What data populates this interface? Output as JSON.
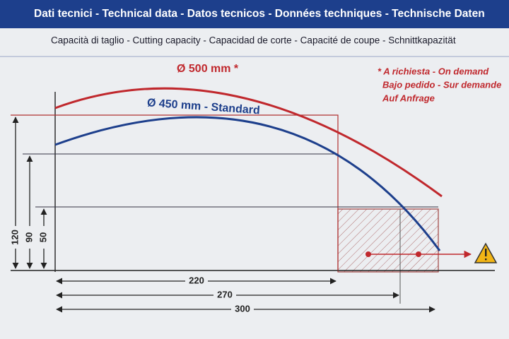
{
  "header": {
    "title": "Dati tecnici - Technical data - Datos tecnicos - Données techniques - Technische Daten",
    "subtitle": "Capacità di taglio - Cutting capacity - Capacidad de corte - Capacité de coupe - Schnittkapazität"
  },
  "curves": [
    {
      "label": "Ø 500 mm *"
    },
    {
      "label": "Ø 450 mm - Standard"
    }
  ],
  "note": [
    "* A richiesta - On demand",
    "Bajo pedido - Sur demande",
    "Auf Anfrage"
  ],
  "heights": [
    120,
    90,
    50
  ],
  "widths": [
    220,
    270,
    300
  ]
}
